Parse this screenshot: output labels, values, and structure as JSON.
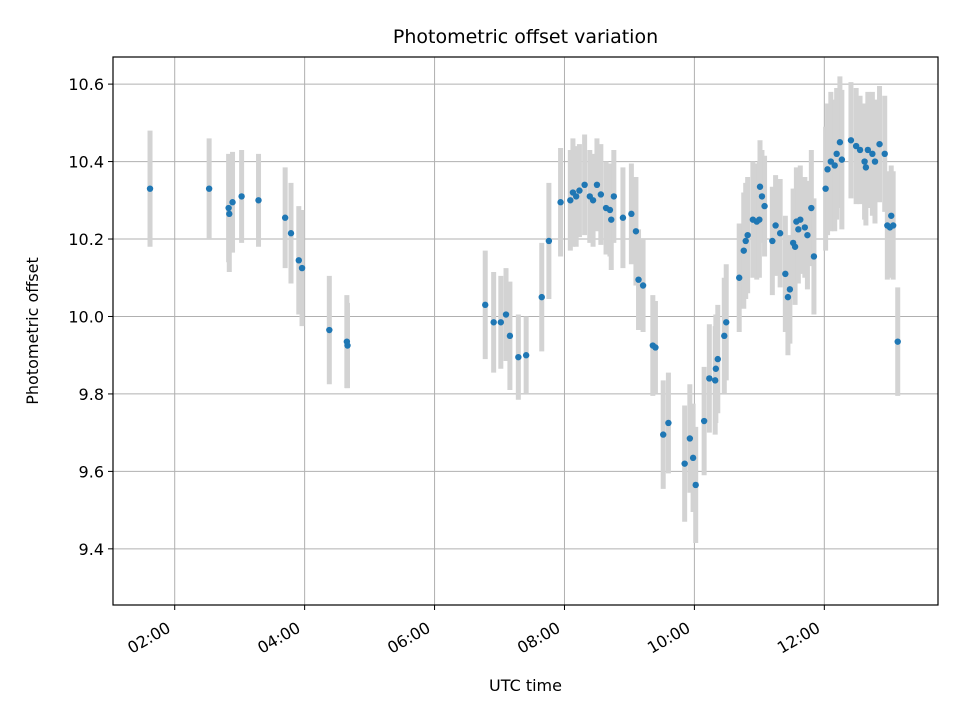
{
  "chart_data": {
    "type": "scatter",
    "title": "Photometric offset variation",
    "xlabel": "UTC time",
    "ylabel": "Photometric offset",
    "x_unit": "hours UTC",
    "xlim": [
      1.05,
      13.75
    ],
    "ylim": [
      9.255,
      10.67
    ],
    "x_ticks": [
      {
        "value": 2,
        "label": "02:00"
      },
      {
        "value": 4,
        "label": "04:00"
      },
      {
        "value": 6,
        "label": "06:00"
      },
      {
        "value": 8,
        "label": "08:00"
      },
      {
        "value": 10,
        "label": "10:00"
      },
      {
        "value": 12,
        "label": "12:00"
      }
    ],
    "y_ticks": [
      {
        "value": 9.4,
        "label": "9.4"
      },
      {
        "value": 9.6,
        "label": "9.6"
      },
      {
        "value": 9.8,
        "label": "9.8"
      },
      {
        "value": 10.0,
        "label": "10.0"
      },
      {
        "value": 10.2,
        "label": "10.2"
      },
      {
        "value": 10.4,
        "label": "10.4"
      },
      {
        "value": 10.6,
        "label": "10.6"
      }
    ],
    "grid": true,
    "colors": {
      "points": "#1f77b4",
      "error_bars": "#d3d3d3"
    },
    "points": [
      [
        1.62,
        10.33,
        0.15
      ],
      [
        2.53,
        10.33,
        0.13
      ],
      [
        2.83,
        10.28,
        0.14
      ],
      [
        2.84,
        10.265,
        0.15
      ],
      [
        2.89,
        10.295,
        0.13
      ],
      [
        3.03,
        10.31,
        0.12
      ],
      [
        3.29,
        10.3,
        0.12
      ],
      [
        3.7,
        10.255,
        0.13
      ],
      [
        3.79,
        10.215,
        0.13
      ],
      [
        3.91,
        10.145,
        0.14
      ],
      [
        3.96,
        10.125,
        0.15
      ],
      [
        4.38,
        9.965,
        0.14
      ],
      [
        4.65,
        9.935,
        0.12
      ],
      [
        4.66,
        9.925,
        0.11
      ],
      [
        6.78,
        10.03,
        0.14
      ],
      [
        6.91,
        9.985,
        0.13
      ],
      [
        7.02,
        9.985,
        0.12
      ],
      [
        7.1,
        10.005,
        0.12
      ],
      [
        7.16,
        9.95,
        0.14
      ],
      [
        7.29,
        9.895,
        0.11
      ],
      [
        7.41,
        9.9,
        0.1
      ],
      [
        7.65,
        10.05,
        0.14
      ],
      [
        7.76,
        10.195,
        0.15
      ],
      [
        7.94,
        10.295,
        0.14
      ],
      [
        8.09,
        10.3,
        0.13
      ],
      [
        8.13,
        10.32,
        0.14
      ],
      [
        8.18,
        10.31,
        0.13
      ],
      [
        8.23,
        10.325,
        0.12
      ],
      [
        8.31,
        10.34,
        0.13
      ],
      [
        8.39,
        10.31,
        0.12
      ],
      [
        8.44,
        10.3,
        0.12
      ],
      [
        8.5,
        10.34,
        0.12
      ],
      [
        8.56,
        10.315,
        0.13
      ],
      [
        8.64,
        10.28,
        0.12
      ],
      [
        8.7,
        10.275,
        0.12
      ],
      [
        8.72,
        10.25,
        0.13
      ],
      [
        8.76,
        10.31,
        0.12
      ],
      [
        8.9,
        10.255,
        0.13
      ],
      [
        9.03,
        10.265,
        0.13
      ],
      [
        9.1,
        10.22,
        0.14
      ],
      [
        9.14,
        10.095,
        0.13
      ],
      [
        9.21,
        10.08,
        0.12
      ],
      [
        9.36,
        9.925,
        0.13
      ],
      [
        9.4,
        9.92,
        0.12
      ],
      [
        9.52,
        9.695,
        0.14
      ],
      [
        9.6,
        9.725,
        0.13
      ],
      [
        9.85,
        9.62,
        0.15
      ],
      [
        9.93,
        9.685,
        0.14
      ],
      [
        9.98,
        9.635,
        0.14
      ],
      [
        10.02,
        9.565,
        0.15
      ],
      [
        10.15,
        9.73,
        0.14
      ],
      [
        10.23,
        9.84,
        0.14
      ],
      [
        10.32,
        9.835,
        0.14
      ],
      [
        10.33,
        9.865,
        0.14
      ],
      [
        10.36,
        9.89,
        0.14
      ],
      [
        10.46,
        9.95,
        0.15
      ],
      [
        10.49,
        9.985,
        0.15
      ],
      [
        10.69,
        10.1,
        0.14
      ],
      [
        10.76,
        10.17,
        0.15
      ],
      [
        10.79,
        10.195,
        0.15
      ],
      [
        10.82,
        10.21,
        0.15
      ],
      [
        10.9,
        10.25,
        0.15
      ],
      [
        10.96,
        10.245,
        0.15
      ],
      [
        11.0,
        10.25,
        0.15
      ],
      [
        11.01,
        10.335,
        0.12
      ],
      [
        11.04,
        10.31,
        0.12
      ],
      [
        11.08,
        10.285,
        0.13
      ],
      [
        11.2,
        10.195,
        0.14
      ],
      [
        11.25,
        10.235,
        0.13
      ],
      [
        11.32,
        10.215,
        0.14
      ],
      [
        11.4,
        10.11,
        0.15
      ],
      [
        11.44,
        10.05,
        0.15
      ],
      [
        11.47,
        10.07,
        0.14
      ],
      [
        11.52,
        10.19,
        0.14
      ],
      [
        11.55,
        10.18,
        0.15
      ],
      [
        11.57,
        10.245,
        0.14
      ],
      [
        11.6,
        10.225,
        0.14
      ],
      [
        11.63,
        10.25,
        0.14
      ],
      [
        11.7,
        10.23,
        0.13
      ],
      [
        11.74,
        10.21,
        0.14
      ],
      [
        11.8,
        10.28,
        0.15
      ],
      [
        11.84,
        10.155,
        0.15
      ],
      [
        12.02,
        10.33,
        0.16
      ],
      [
        12.05,
        10.38,
        0.17
      ],
      [
        12.1,
        10.4,
        0.18
      ],
      [
        12.16,
        10.39,
        0.17
      ],
      [
        12.19,
        10.42,
        0.17
      ],
      [
        12.24,
        10.45,
        0.17
      ],
      [
        12.27,
        10.405,
        0.18
      ],
      [
        12.41,
        10.455,
        0.15
      ],
      [
        12.49,
        10.44,
        0.15
      ],
      [
        12.55,
        10.43,
        0.14
      ],
      [
        12.62,
        10.4,
        0.15
      ],
      [
        12.64,
        10.385,
        0.15
      ],
      [
        12.67,
        10.43,
        0.15
      ],
      [
        12.74,
        10.42,
        0.16
      ],
      [
        12.78,
        10.4,
        0.16
      ],
      [
        12.85,
        10.445,
        0.15
      ],
      [
        12.93,
        10.42,
        0.15
      ],
      [
        12.97,
        10.235,
        0.14
      ],
      [
        13.01,
        10.23,
        0.13
      ],
      [
        13.03,
        10.26,
        0.13
      ],
      [
        13.06,
        10.235,
        0.14
      ],
      [
        13.13,
        9.935,
        0.14
      ]
    ]
  }
}
